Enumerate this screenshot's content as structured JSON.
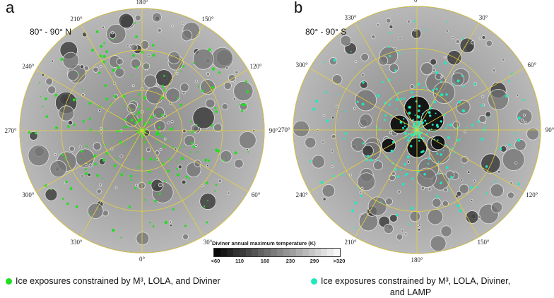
{
  "panels": [
    {
      "letter": "a",
      "range": "80° - 90° N",
      "longitude_labels": [
        "180°",
        "150°",
        "120°",
        "90°",
        "60°",
        "30°",
        "0°",
        "330°",
        "300°",
        "270°",
        "240°",
        "210°"
      ],
      "ice_color": "#22dd22"
    },
    {
      "letter": "b",
      "range": "80° - 90° S",
      "longitude_labels": [
        "0°",
        "30°",
        "60°",
        "90°",
        "120°",
        "150°",
        "180°",
        "210°",
        "240°",
        "270°",
        "300°",
        "330°"
      ],
      "ice_color": "#22e8c0"
    }
  ],
  "colorbar": {
    "title": "Diviner annual maximum temperature (K)",
    "ticks": [
      "<60",
      "110",
      "160",
      "230",
      "290",
      ">320"
    ]
  },
  "legend": [
    {
      "text": "Ice exposures constrained by M³, LOLA, and Diviner",
      "color": "#22dd22"
    },
    {
      "text": "Ice exposures constrained by M³, LOLA, Diviner,",
      "text2": "and LAMP",
      "color": "#22e8c0"
    }
  ],
  "grid_color": "#e8d23a"
}
